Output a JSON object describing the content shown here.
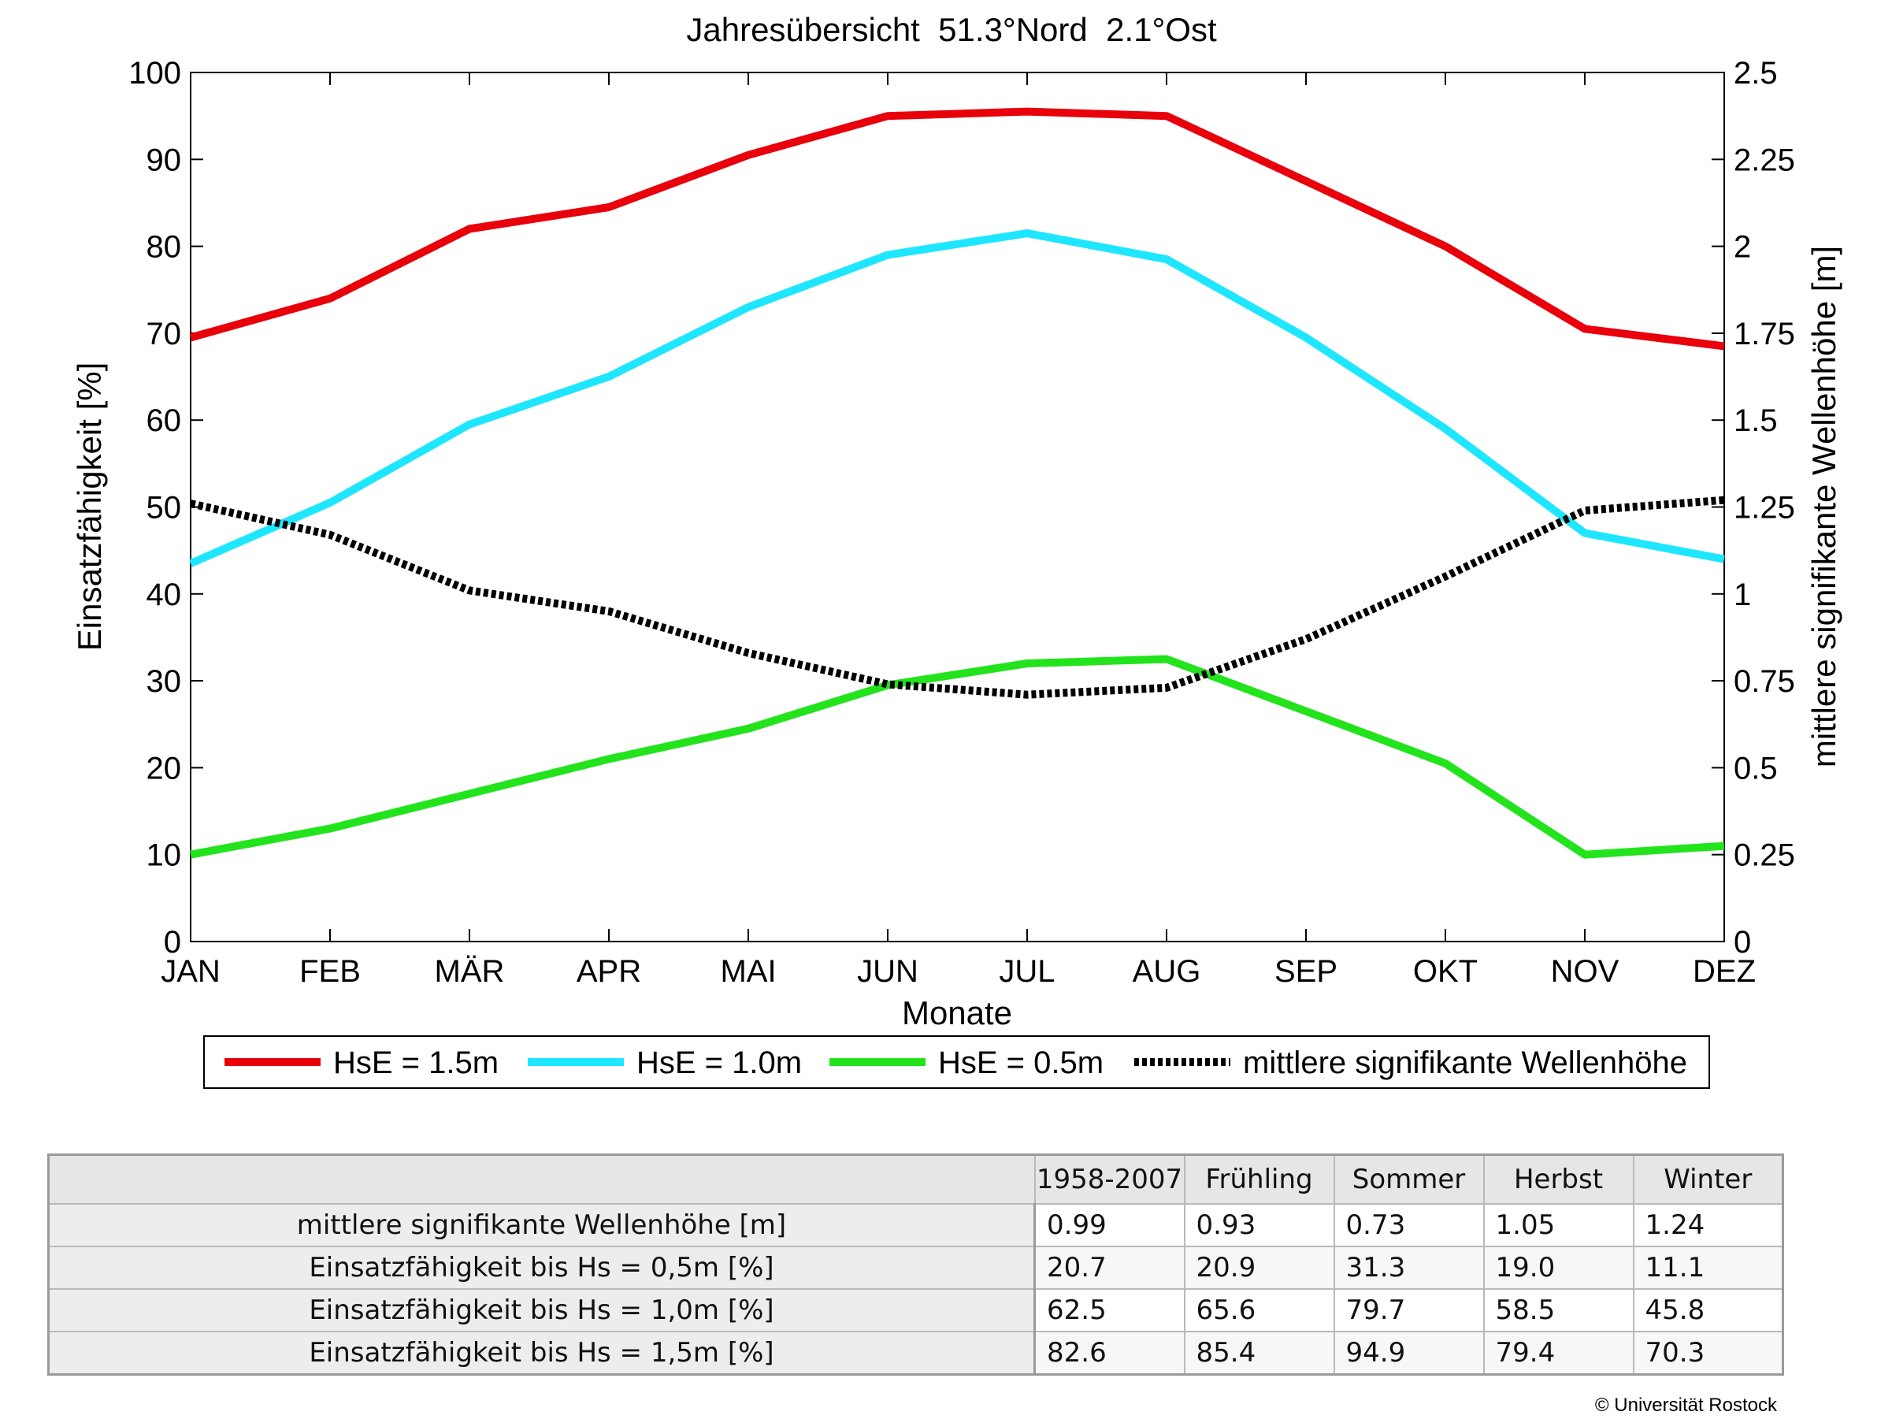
{
  "chart_data": {
    "type": "line",
    "title": "Jahresübersicht  51.3°Nord  2.1°Ost",
    "xlabel": "Monate",
    "ylabel": "Einsatzfähigkeit [%]",
    "ylabel_right": "mittlere signifikante Wellenhöhe [m]",
    "categories": [
      "JAN",
      "FEB",
      "MÄR",
      "APR",
      "MAI",
      "JUN",
      "JUL",
      "AUG",
      "SEP",
      "OKT",
      "NOV",
      "DEZ"
    ],
    "ylim": [
      0,
      100
    ],
    "yticks": [
      "0",
      "10",
      "20",
      "30",
      "40",
      "50",
      "60",
      "70",
      "80",
      "90",
      "100"
    ],
    "ylim_right": [
      0,
      2.5
    ],
    "yticks_right": [
      "0",
      "0.25",
      "0.5",
      "0.75",
      "1",
      "1.25",
      "1.5",
      "1.75",
      "2",
      "2.25",
      "2.5"
    ],
    "grid": false,
    "legend_position": "bottom",
    "series": [
      {
        "name": "HsE = 1.5m",
        "axis": "left",
        "color": "#e8000b",
        "style": "solid",
        "values": [
          69.5,
          74,
          82,
          84.5,
          90.5,
          95,
          95.5,
          95,
          87.5,
          80,
          70.5,
          68.5
        ]
      },
      {
        "name": "HsE = 1.0m",
        "axis": "left",
        "color": "#1ee6ff",
        "style": "solid",
        "values": [
          43.5,
          50.5,
          59.5,
          65,
          73,
          79,
          81.5,
          78.5,
          69.5,
          59,
          47,
          44
        ]
      },
      {
        "name": "HsE = 0.5m",
        "axis": "left",
        "color": "#22e31c",
        "style": "solid",
        "values": [
          10,
          13,
          17,
          21,
          24.5,
          29.5,
          32,
          32.5,
          26.5,
          20.5,
          10,
          11
        ]
      },
      {
        "name": "mittlere signifikante Wellenhöhe",
        "axis": "right",
        "color": "#000000",
        "style": "dotted",
        "values": [
          1.26,
          1.17,
          1.01,
          0.95,
          0.83,
          0.74,
          0.71,
          0.73,
          0.87,
          1.05,
          1.24,
          1.27
        ]
      }
    ]
  },
  "table": {
    "headers": [
      "1958-2007",
      "Frühling",
      "Sommer",
      "Herbst",
      "Winter"
    ],
    "rows": [
      {
        "label": "mittlere signifikante Wellenhöhe [m]",
        "values": [
          "0.99",
          "0.93",
          "0.73",
          "1.05",
          "1.24"
        ]
      },
      {
        "label": "Einsatzfähigkeit bis Hs = 0,5m [%]",
        "values": [
          "20.7",
          "20.9",
          "31.3",
          "19.0",
          "11.1"
        ]
      },
      {
        "label": "Einsatzfähigkeit bis Hs = 1,0m [%]",
        "values": [
          "62.5",
          "65.6",
          "79.7",
          "58.5",
          "45.8"
        ]
      },
      {
        "label": "Einsatzfähigkeit bis Hs = 1,5m [%]",
        "values": [
          "82.6",
          "85.4",
          "94.9",
          "79.4",
          "70.3"
        ]
      }
    ]
  },
  "copyright": "© Universität Rostock"
}
